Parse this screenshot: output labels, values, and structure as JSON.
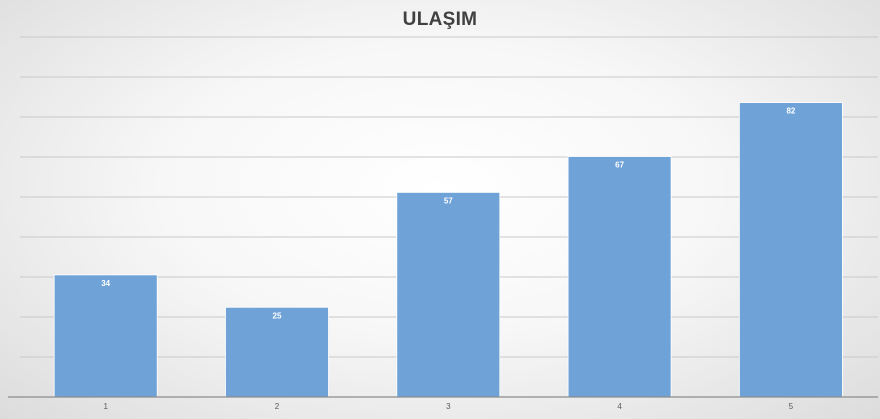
{
  "chart_data": {
    "type": "bar",
    "title": "ULAŞIM",
    "categories": [
      "1",
      "2",
      "3",
      "4",
      "5"
    ],
    "values": [
      34,
      25,
      57,
      67,
      82
    ],
    "ylim": [
      0,
      100
    ],
    "grid": true,
    "legend": "none",
    "bar_color": "#6fa3d8",
    "data_labels": [
      "34",
      "25",
      "57",
      "67",
      "82"
    ]
  }
}
